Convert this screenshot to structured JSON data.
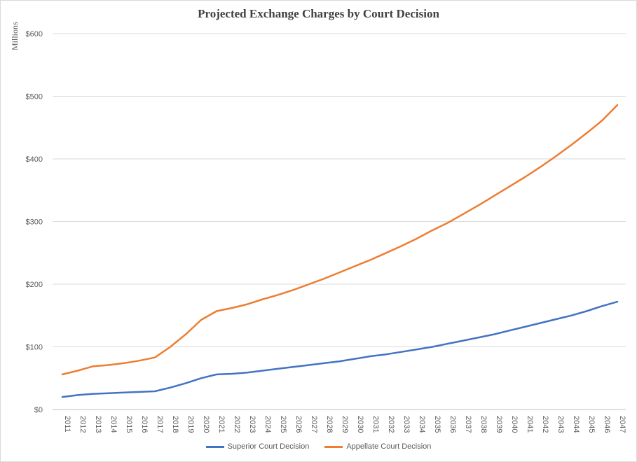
{
  "chart_data": {
    "type": "line",
    "title": "Projected Exchange Charges by Court Decision",
    "ylabel": "Millions",
    "xlabel": "",
    "ylim": [
      0,
      600
    ],
    "yticks": [
      "$0",
      "$100",
      "$200",
      "$300",
      "$400",
      "$500",
      "$600"
    ],
    "grid": true,
    "legend_position": "bottom",
    "categories": [
      "2011",
      "2012",
      "2013",
      "2014",
      "2015",
      "2016",
      "2017",
      "2018",
      "2019",
      "2020",
      "2021",
      "2022",
      "2023",
      "2024",
      "2025",
      "2026",
      "2027",
      "2028",
      "2029",
      "2030",
      "2031",
      "2032",
      "2033",
      "2034",
      "2035",
      "2036",
      "2037",
      "2038",
      "2039",
      "2040",
      "2041",
      "2042",
      "2043",
      "2044",
      "2045",
      "2046",
      "2047"
    ],
    "series": [
      {
        "name": "Superior Court Decision",
        "color": "#4472c4",
        "values": [
          20,
          23,
          25,
          26,
          27,
          28,
          29,
          35,
          42,
          50,
          56,
          57,
          59,
          62,
          65,
          68,
          71,
          74,
          77,
          81,
          85,
          88,
          92,
          96,
          100,
          105,
          110,
          115,
          120,
          126,
          132,
          138,
          144,
          150,
          157,
          165,
          172
        ]
      },
      {
        "name": "Appellate Court Decision",
        "color": "#ed7d31",
        "values": [
          56,
          62,
          69,
          71,
          74,
          78,
          83,
          100,
          120,
          143,
          157,
          162,
          168,
          176,
          183,
          191,
          200,
          209,
          219,
          229,
          239,
          250,
          261,
          273,
          286,
          298,
          312,
          326,
          341,
          356,
          371,
          387,
          404,
          422,
          441,
          461,
          486
        ]
      }
    ]
  }
}
